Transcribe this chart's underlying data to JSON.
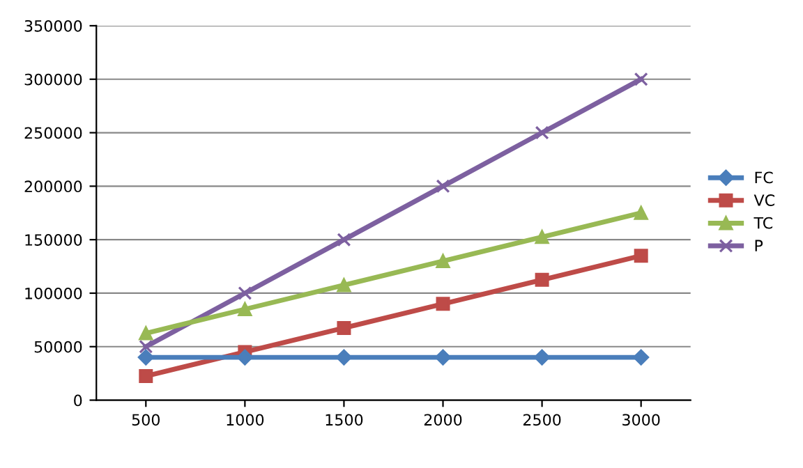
{
  "chart_data": {
    "type": "line",
    "categories": [
      "500",
      "1000",
      "1500",
      "2000",
      "2500",
      "3000"
    ],
    "series": [
      {
        "name": "FC",
        "color": "#4a7ebb",
        "marker": "diamond",
        "values": [
          40000,
          40000,
          40000,
          40000,
          40000,
          40000
        ]
      },
      {
        "name": "VC",
        "color": "#be4b48",
        "marker": "square",
        "values": [
          22500,
          45000,
          67500,
          90000,
          112500,
          135000
        ]
      },
      {
        "name": "TC",
        "color": "#98b954",
        "marker": "triangle",
        "values": [
          62500,
          85000,
          107500,
          130000,
          152500,
          175000
        ]
      },
      {
        "name": "P",
        "color": "#7d60a0",
        "marker": "cross",
        "values": [
          50000,
          100000,
          150000,
          200000,
          250000,
          300000
        ]
      }
    ],
    "ylim": [
      0,
      350000
    ],
    "yticks": [
      0,
      50000,
      100000,
      150000,
      200000,
      250000,
      300000,
      350000
    ],
    "grid": "y",
    "legend": "right"
  }
}
